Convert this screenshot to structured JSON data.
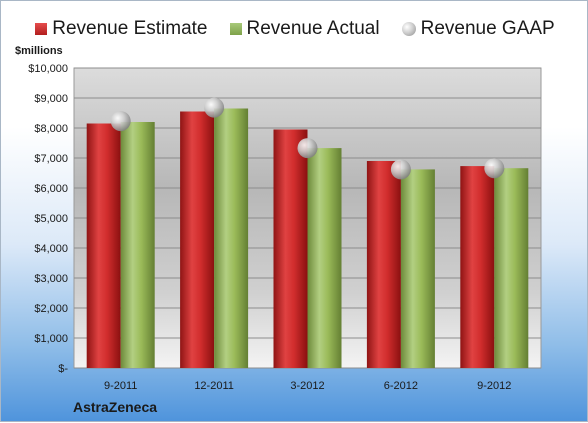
{
  "chart_data": {
    "type": "bar",
    "categories": [
      "9-2011",
      "12-2011",
      "3-2012",
      "6-2012",
      "9-2012"
    ],
    "series": [
      {
        "name": "Revenue Estimate",
        "values": [
          8150,
          8550,
          7950,
          6900,
          6730
        ],
        "color": "#c42a2a"
      },
      {
        "name": "Revenue Actual",
        "values": [
          8200,
          8650,
          7330,
          6620,
          6660
        ],
        "color": "#9bbb59"
      },
      {
        "name": "Revenue GAAP",
        "values": [
          8230,
          8680,
          7330,
          6620,
          6660
        ],
        "color": "#c8c8c8",
        "marker": "sphere"
      }
    ],
    "ylabel": "$millions",
    "ylim": [
      0,
      10000
    ],
    "yticks": [
      "$-",
      "$1,000",
      "$2,000",
      "$3,000",
      "$4,000",
      "$5,000",
      "$6,000",
      "$7,000",
      "$8,000",
      "$9,000",
      "$10,000"
    ],
    "grid": true,
    "legend_position": "top"
  },
  "company": "AstraZeneca"
}
